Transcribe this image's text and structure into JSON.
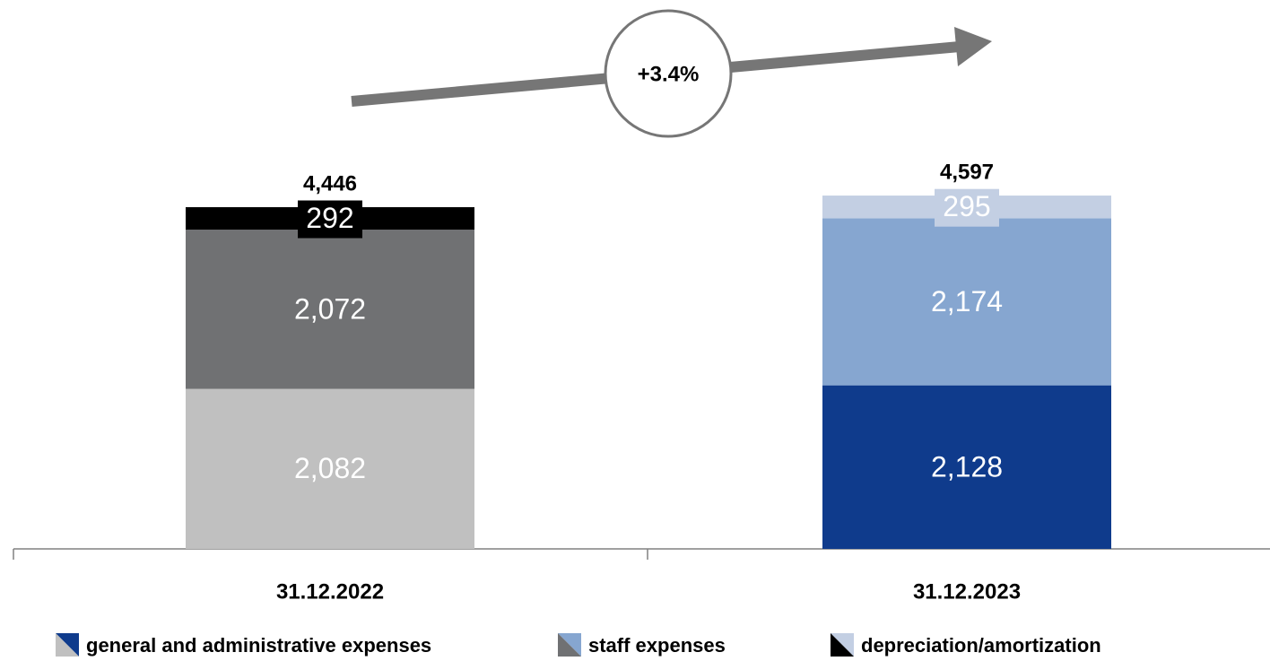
{
  "chart_data": {
    "type": "stacked-bar",
    "categories": [
      "31.12.2022",
      "31.12.2023"
    ],
    "series": [
      {
        "name": "general and administrative expenses",
        "colors": [
          "#c0c0c0",
          "#0f3b8c"
        ],
        "values": [
          2082,
          2128
        ],
        "value_labels": [
          "2,082",
          "2,128"
        ]
      },
      {
        "name": "staff expenses",
        "colors": [
          "#707173",
          "#86a6d0"
        ],
        "values": [
          2072,
          2174
        ],
        "value_labels": [
          "2,072",
          "2,174"
        ]
      },
      {
        "name": "depreciation/amortization",
        "colors": [
          "#000000",
          "#c3cfe3"
        ],
        "values": [
          292,
          295
        ],
        "value_labels": [
          "292",
          "295"
        ]
      }
    ],
    "totals": [
      4446,
      4597
    ],
    "total_labels": [
      "4,446",
      "4,597"
    ],
    "annotation": "+3.4%"
  }
}
